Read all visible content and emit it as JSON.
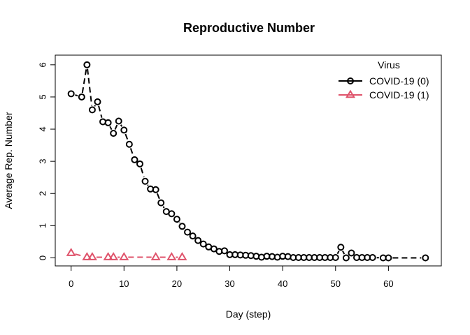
{
  "chart_data": {
    "type": "line",
    "title": "Reproductive Number",
    "xlabel": "Day (step)",
    "ylabel": "Average Rep. Number",
    "xlim": [
      -3,
      70
    ],
    "ylim": [
      -0.25,
      6.3
    ],
    "xticks": [
      0,
      10,
      20,
      30,
      40,
      50,
      60
    ],
    "yticks": [
      0,
      1,
      2,
      3,
      4,
      5,
      6
    ],
    "grid": false,
    "legend": {
      "title": "Virus",
      "placement": "top-right",
      "entries": [
        "COVID-19 (0)",
        "COVID-19 (1)"
      ]
    },
    "series": [
      {
        "name": "COVID-19 (0)",
        "color": "#000000",
        "marker": "circle",
        "line": "dashed",
        "x": [
          0,
          2,
          3,
          4,
          5,
          6,
          7,
          8,
          9,
          10,
          11,
          12,
          13,
          14,
          15,
          16,
          17,
          18,
          19,
          20,
          21,
          22,
          23,
          24,
          25,
          26,
          27,
          28,
          29,
          30,
          31,
          32,
          33,
          34,
          35,
          36,
          37,
          38,
          39,
          40,
          41,
          42,
          43,
          44,
          45,
          46,
          47,
          48,
          49,
          50,
          51,
          52,
          53,
          54,
          55,
          56,
          57,
          59,
          60,
          67
        ],
        "y": [
          5.1,
          5.0,
          6.0,
          4.6,
          4.85,
          4.23,
          4.2,
          3.87,
          4.25,
          3.97,
          3.53,
          3.05,
          2.92,
          2.38,
          2.14,
          2.12,
          1.71,
          1.44,
          1.37,
          1.2,
          0.98,
          0.8,
          0.68,
          0.54,
          0.43,
          0.34,
          0.28,
          0.2,
          0.22,
          0.1,
          0.1,
          0.09,
          0.08,
          0.07,
          0.05,
          0.02,
          0.05,
          0.04,
          0.02,
          0.05,
          0.04,
          0.01,
          0.01,
          0.01,
          0.01,
          0.01,
          0.01,
          0.01,
          0.01,
          0.01,
          0.33,
          0.0,
          0.15,
          0.01,
          0.01,
          0.01,
          0.01,
          0.0,
          0.0,
          0.0
        ]
      },
      {
        "name": "COVID-19 (1)",
        "color": "#df536b",
        "marker": "triangle",
        "line": "dashed",
        "x": [
          0,
          3,
          4,
          7,
          8,
          10,
          16,
          19,
          21
        ],
        "y": [
          0.15,
          0.02,
          0.02,
          0.02,
          0.02,
          0.02,
          0.02,
          0.02,
          0.02
        ]
      }
    ]
  }
}
